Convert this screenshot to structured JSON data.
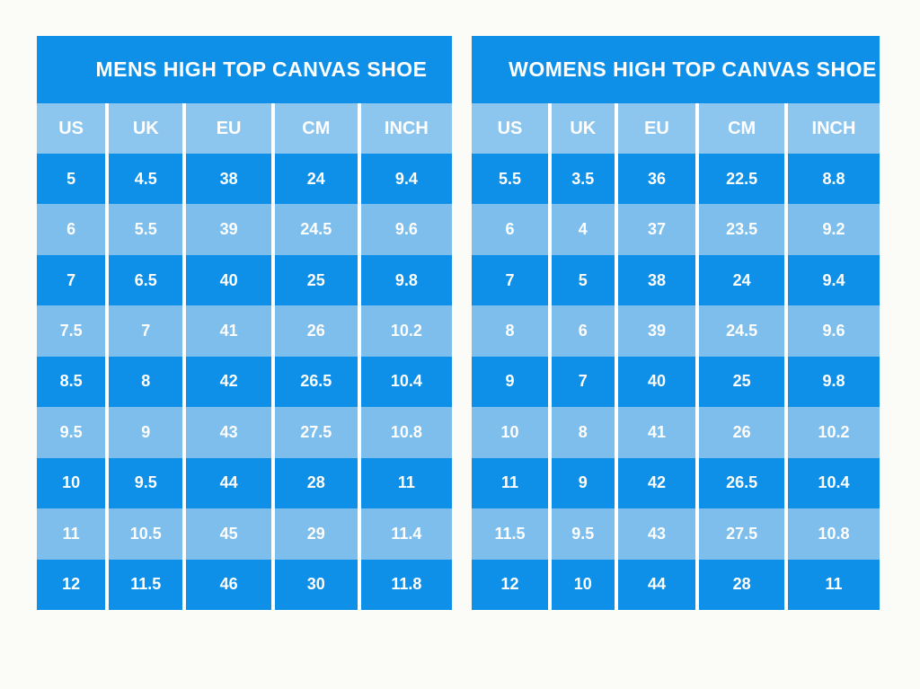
{
  "colors": {
    "page_background": "#FBFBF8",
    "dark_blue": "#0E90E9",
    "light_blue": "#7DBEEC",
    "header_blue": "#8CC5EE",
    "separator": "#FFFFFF",
    "text": "#FFFFFF"
  },
  "chart_data": [
    {
      "type": "table",
      "title": "MENS HIGH TOP CANVAS SHOE",
      "columns": [
        "US",
        "UK",
        "EU",
        "CM",
        "INCH"
      ],
      "rows": [
        [
          "5",
          "4.5",
          "38",
          "24",
          "9.4"
        ],
        [
          "6",
          "5.5",
          "39",
          "24.5",
          "9.6"
        ],
        [
          "7",
          "6.5",
          "40",
          "25",
          "9.8"
        ],
        [
          "7.5",
          "7",
          "41",
          "26",
          "10.2"
        ],
        [
          "8.5",
          "8",
          "42",
          "26.5",
          "10.4"
        ],
        [
          "9.5",
          "9",
          "43",
          "27.5",
          "10.8"
        ],
        [
          "10",
          "9.5",
          "44",
          "28",
          "11"
        ],
        [
          "11",
          "10.5",
          "45",
          "29",
          "11.4"
        ],
        [
          "12",
          "11.5",
          "46",
          "30",
          "11.8"
        ]
      ]
    },
    {
      "type": "table",
      "title": "WOMENS HIGH TOP CANVAS SHOE",
      "columns": [
        "US",
        "UK",
        "EU",
        "CM",
        "INCH"
      ],
      "rows": [
        [
          "5.5",
          "3.5",
          "36",
          "22.5",
          "8.8"
        ],
        [
          "6",
          "4",
          "37",
          "23.5",
          "9.2"
        ],
        [
          "7",
          "5",
          "38",
          "24",
          "9.4"
        ],
        [
          "8",
          "6",
          "39",
          "24.5",
          "9.6"
        ],
        [
          "9",
          "7",
          "40",
          "25",
          "9.8"
        ],
        [
          "10",
          "8",
          "41",
          "26",
          "10.2"
        ],
        [
          "11",
          "9",
          "42",
          "26.5",
          "10.4"
        ],
        [
          "11.5",
          "9.5",
          "43",
          "27.5",
          "10.8"
        ],
        [
          "12",
          "10",
          "44",
          "28",
          "11"
        ]
      ]
    }
  ]
}
